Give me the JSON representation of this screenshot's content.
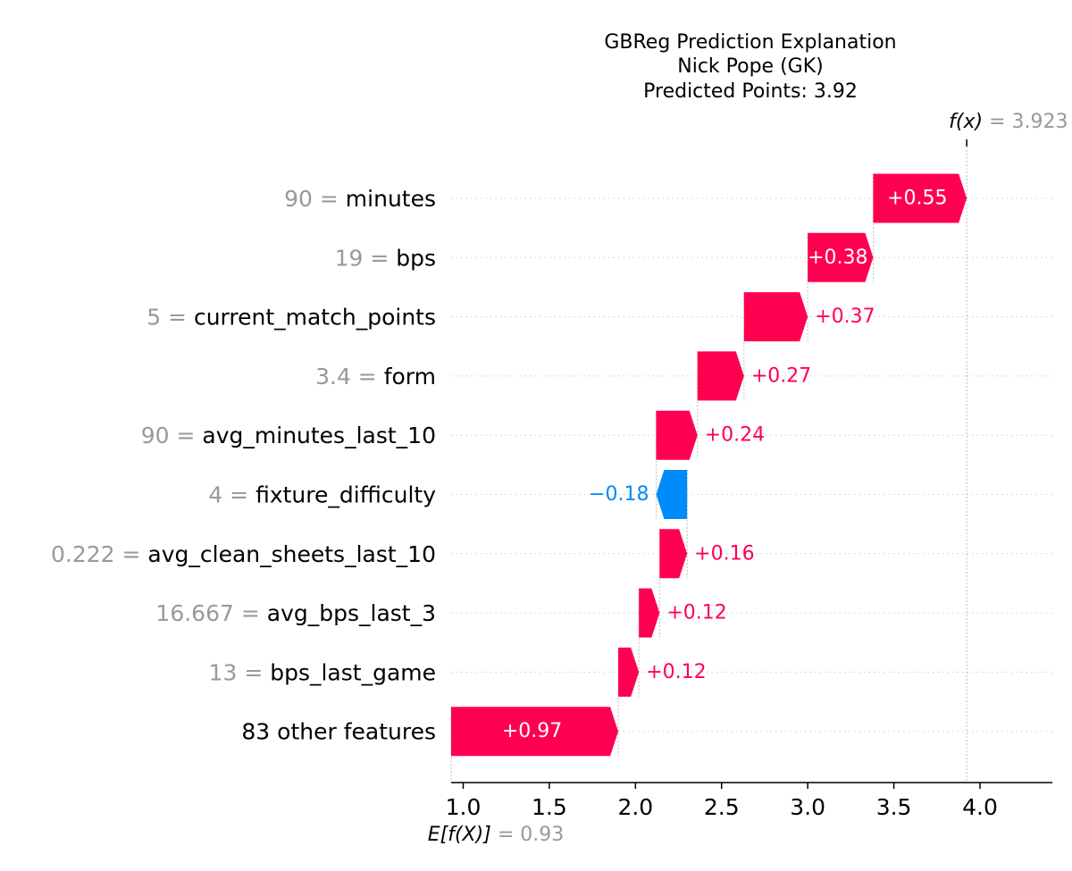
{
  "chart_data": {
    "type": "waterfall",
    "title_lines": [
      "GBReg Prediction Explanation",
      "Nick Pope (GK)",
      "Predicted Points: 3.92"
    ],
    "fx_label": "f(x)",
    "fx_value": "3.923",
    "efx_label": "E[f(X)]",
    "efx_value": "0.93",
    "base_value": 0.93,
    "final_value": 3.923,
    "xlim": [
      0.93,
      4.42
    ],
    "xticks": [
      1.0,
      1.5,
      2.0,
      2.5,
      3.0,
      3.5,
      4.0
    ],
    "xtick_labels": [
      "1.0",
      "1.5",
      "2.0",
      "2.5",
      "3.0",
      "3.5",
      "4.0"
    ],
    "colors": {
      "positive": "#ff0051",
      "negative": "#008bfb",
      "value_gray": "#999999",
      "name": "#000000"
    },
    "features": [
      {
        "value": "90",
        "name": "minutes",
        "contribution": 0.55,
        "label": "+0.55"
      },
      {
        "value": "19",
        "name": "bps",
        "contribution": 0.38,
        "label": "+0.38"
      },
      {
        "value": "5",
        "name": "current_match_points",
        "contribution": 0.37,
        "label": "+0.37"
      },
      {
        "value": "3.4",
        "name": "form",
        "contribution": 0.27,
        "label": "+0.27"
      },
      {
        "value": "90",
        "name": "avg_minutes_last_10",
        "contribution": 0.24,
        "label": "+0.24"
      },
      {
        "value": "4",
        "name": "fixture_difficulty",
        "contribution": -0.18,
        "label": "−0.18"
      },
      {
        "value": "0.222",
        "name": "avg_clean_sheets_last_10",
        "contribution": 0.16,
        "label": "+0.16"
      },
      {
        "value": "16.667",
        "name": "avg_bps_last_3",
        "contribution": 0.12,
        "label": "+0.12"
      },
      {
        "value": "13",
        "name": "bps_last_game",
        "contribution": 0.12,
        "label": "+0.12"
      },
      {
        "value": "",
        "name": "83 other features",
        "contribution": 0.97,
        "label": "+0.97"
      }
    ]
  }
}
